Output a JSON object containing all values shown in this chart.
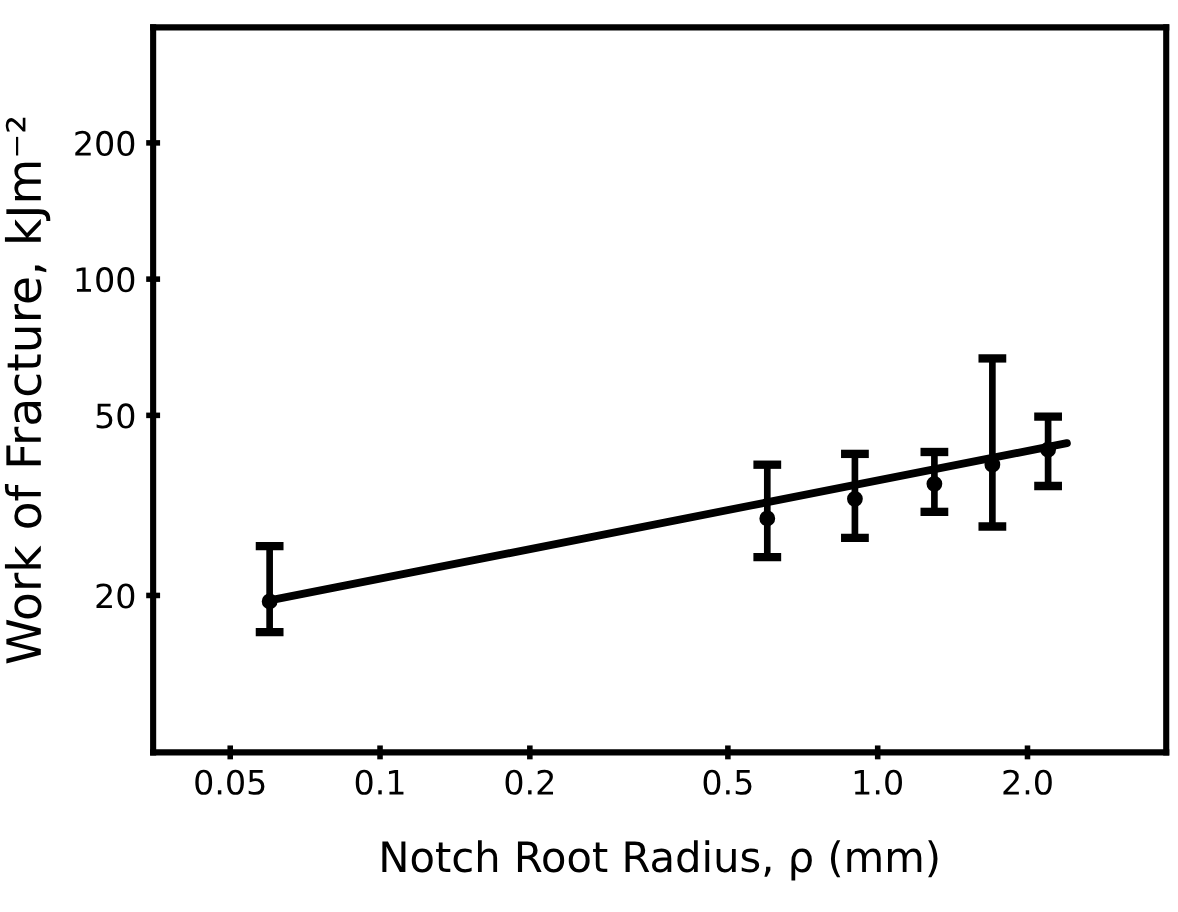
{
  "chart_data": {
    "type": "scatter",
    "xlabel": "Notch Root Radius, ρ (mm)",
    "ylabel": "Work of Fracture, kJm⁻²",
    "log": "xy",
    "xlim": [
      0.035,
      3.8
    ],
    "xticks": [
      0.05,
      0.1,
      0.2,
      0.5,
      {
        "value": 1,
        "label": "1.0"
      },
      {
        "value": 2,
        "label": "2.0"
      }
    ],
    "ylim": [
      9,
      360
    ],
    "yticks": [
      20,
      50,
      100,
      200
    ],
    "grid": false,
    "series": [
      {
        "marker": "circle",
        "color": "#000000",
        "x": [
          0.06,
          0.6,
          0.9,
          1.3,
          1.7,
          2.2
        ],
        "values": [
          19.4,
          29.6,
          32.7,
          35.3,
          38.9,
          42.0
        ],
        "errors": [
          [
            16.6,
            25.7
          ],
          [
            24.3,
            38.9
          ],
          [
            26.8,
            41.1
          ],
          [
            30.6,
            41.5
          ],
          [
            28.4,
            66.8
          ],
          [
            34.9,
            49.7
          ]
        ]
      },
      {
        "type": "line",
        "line_style": "solid",
        "color": "#000000",
        "x": [
          0.06,
          2.4
        ],
        "values": [
          19.5,
          43.4
        ]
      }
    ]
  }
}
